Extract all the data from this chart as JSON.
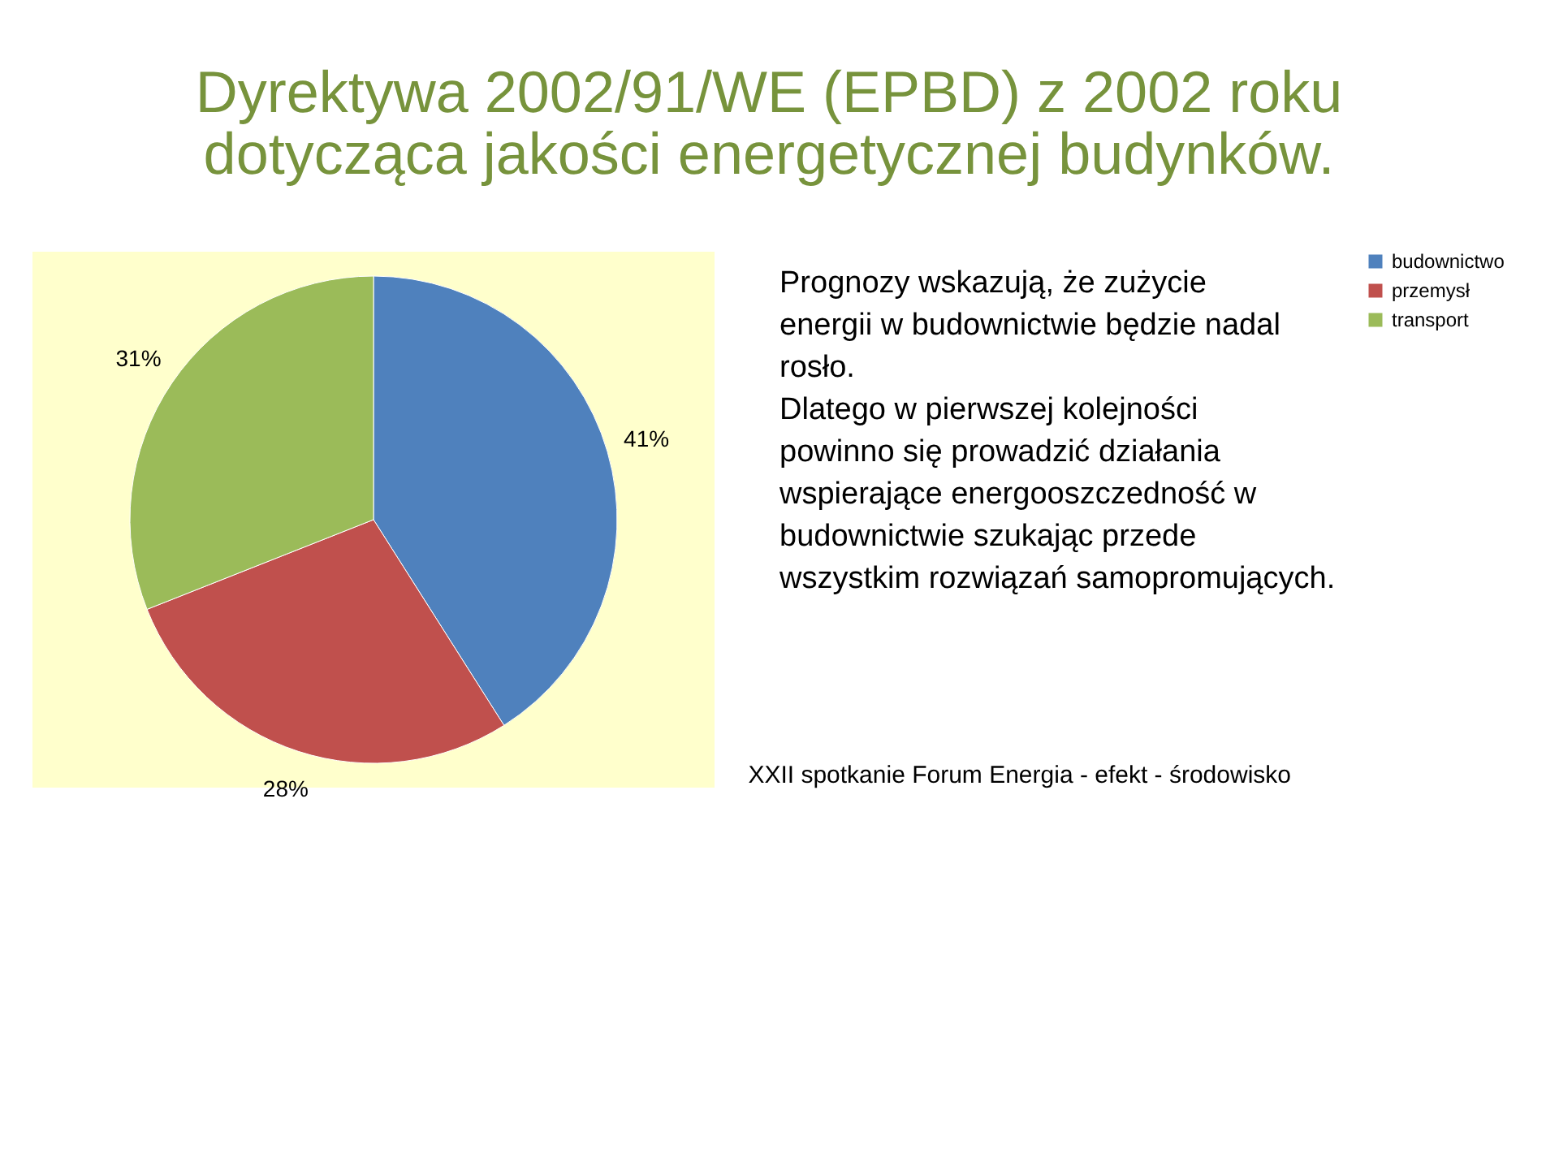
{
  "chart_data": {
    "type": "pie",
    "title": "Dyrektywa 2002/91/WE (EPBD) z 2002 roku dotycząca jakości energetycznej budynków.",
    "categories": [
      "budownictwo",
      "przemysł",
      "transport"
    ],
    "values": [
      41,
      28,
      31
    ],
    "colors": [
      "#4f81bd",
      "#c0504d",
      "#9bbb59"
    ],
    "value_labels": [
      "41%",
      "28%",
      "31%"
    ],
    "legend": "right",
    "annotations": [
      "Prognozy  wskazują, że zużycie energii w budownictwie będzie nadal rosło.",
      "Dlatego w pierwszej kolejności powinno się prowadzić działania wspierające energooszczedność w budownictwie szukając przede wszystkim rozwiązań samopromujących.",
      "XXII spotkanie Forum Energia - efekt - środowisko"
    ]
  }
}
